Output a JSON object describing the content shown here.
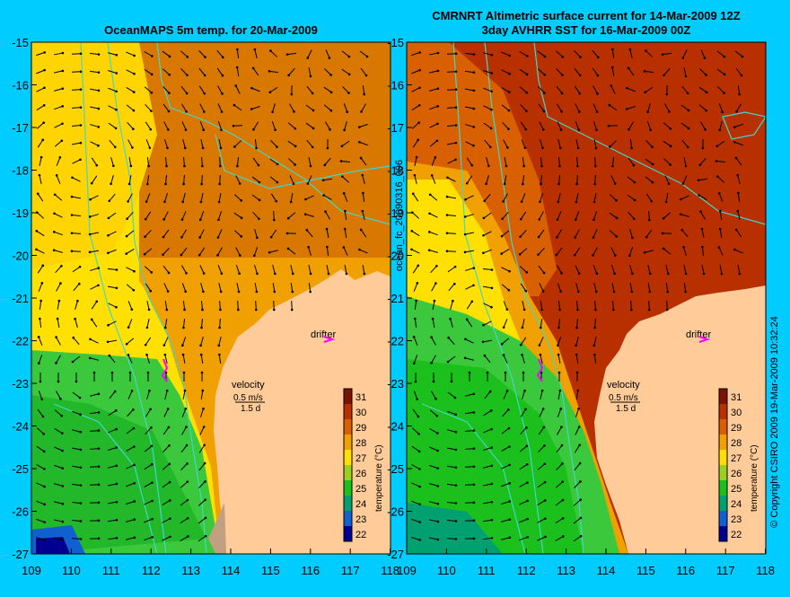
{
  "left_panel": {
    "title": "OceanMAPS 5m temp. for 20-Mar-2009",
    "drifter_label": "drifter",
    "velocity_label": "velocity",
    "scale_speed": "0.5 m/s",
    "scale_time": "1.5 d"
  },
  "right_panel": {
    "title_line1": "CMRNRT Altimetric surface current for 14-Mar-2009 12Z",
    "title_line2": "3day AVHRR SST for 16-Mar-2009 00Z",
    "drifter_label": "drifter",
    "velocity_label": "velocity",
    "scale_speed": "0.5 m/s",
    "scale_time": "1.5 d"
  },
  "colorbar": {
    "label": "temperature (°C)",
    "ticks": [
      "31",
      "30",
      "29",
      "28",
      "27",
      "26",
      "25",
      "24",
      "23",
      "22"
    ],
    "colors": [
      "#7a1400",
      "#b83000",
      "#d96000",
      "#f0a000",
      "#ffe000",
      "#9ad020",
      "#1cc01c",
      "#00a070",
      "#1060d0",
      "#000090"
    ]
  },
  "side_labels": {
    "file_id": "ocean_fc_20090316_096",
    "copyright": "© Copyright CSIRO 2009   19-Mar-2009 10:32:24"
  },
  "axes": {
    "lat_ticks": [
      "-15",
      "-16",
      "-17",
      "-18",
      "-19",
      "-20",
      "-21",
      "-22",
      "-23",
      "-24",
      "-25",
      "-26",
      "-27"
    ],
    "lon_ticks": [
      "109",
      "110",
      "111",
      "112",
      "113",
      "114",
      "115",
      "116",
      "117",
      "118"
    ]
  },
  "colors": {
    "background": "#00ccff",
    "land": "#ffcc99",
    "bathymetry_contour": "#40d8c8",
    "drifter_marker": "#ff00ff",
    "arrow": "#000000"
  }
}
